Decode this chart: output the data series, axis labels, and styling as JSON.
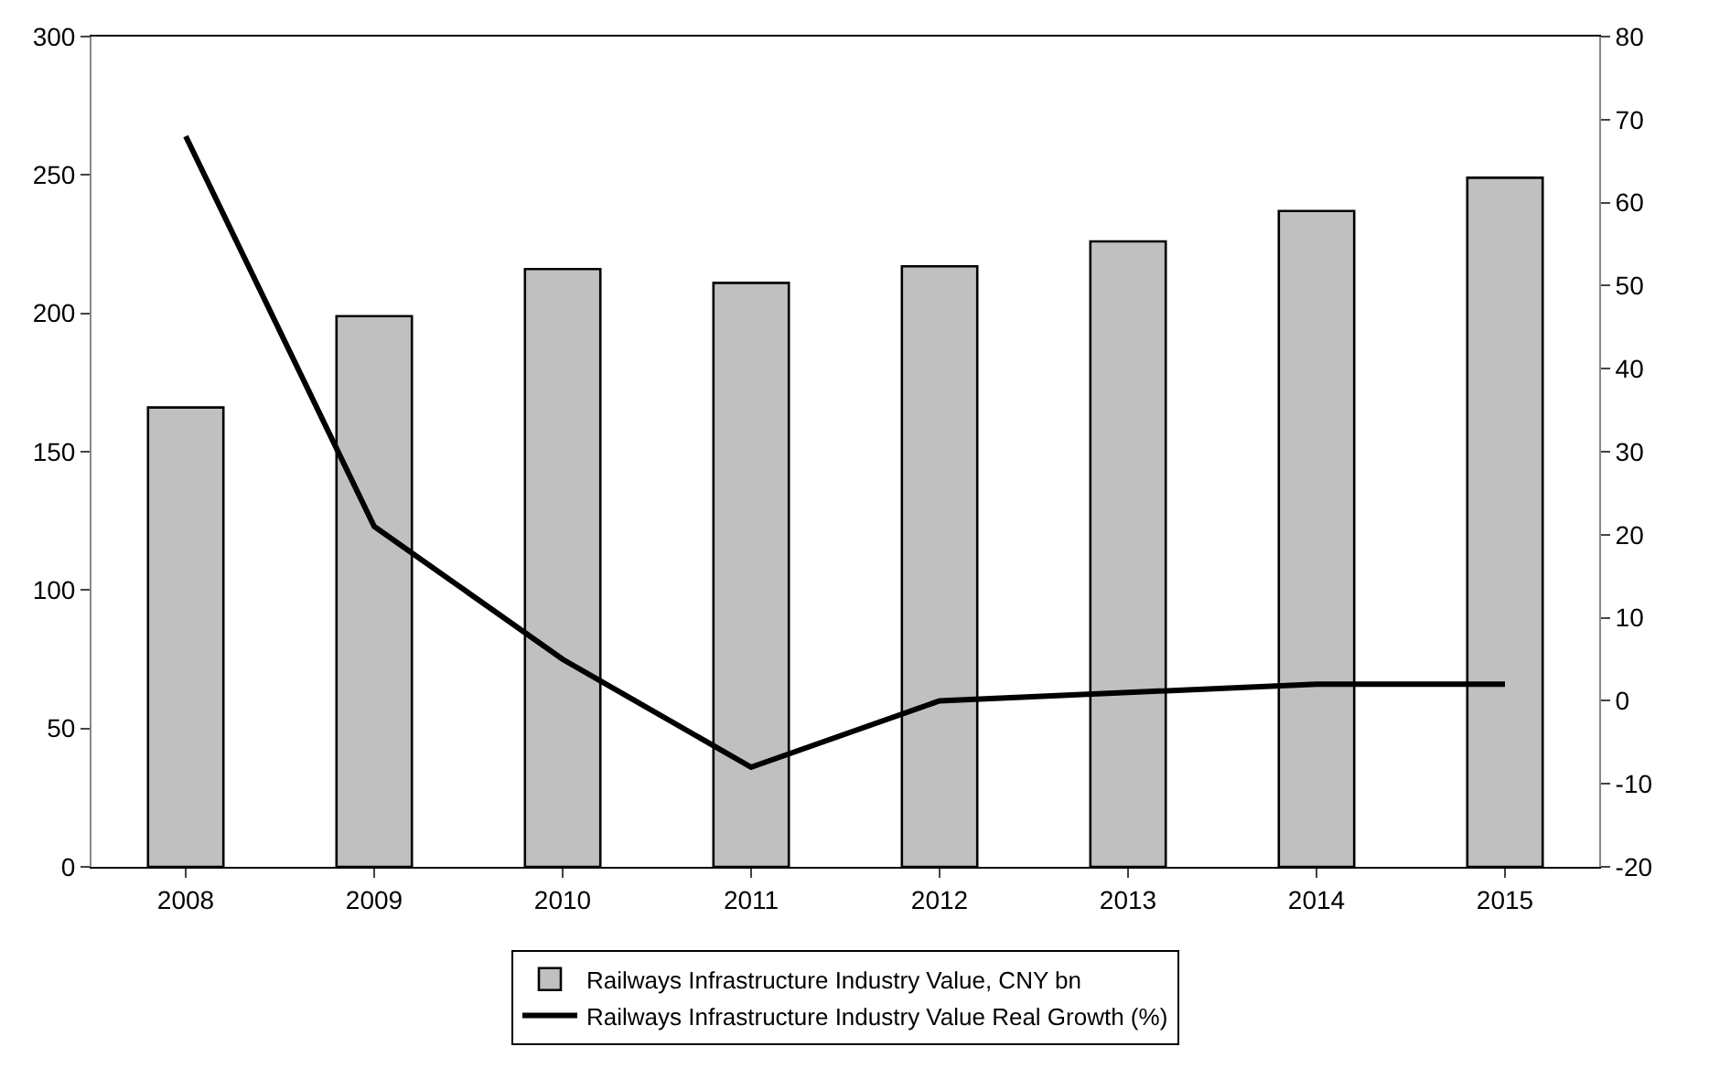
{
  "chart_data": {
    "type": "bar",
    "categories": [
      "2008",
      "2009",
      "2010",
      "2011",
      "2012",
      "2013",
      "2014",
      "2015"
    ],
    "series": [
      {
        "name": "Railways Infrastructure Industry Value, CNY bn",
        "color": "#c0c0c0",
        "values": [
          166,
          199,
          216,
          211,
          217,
          226,
          237,
          249
        ]
      },
      {
        "name": "Railways Infrastructure Industry Value Real Growth (%)",
        "type": "line",
        "axis": "y2",
        "color": "#000000",
        "values": [
          68,
          21,
          5,
          -8,
          0,
          1,
          2,
          2
        ]
      }
    ],
    "ylim": [
      0,
      300
    ],
    "yticks": [
      0,
      50,
      100,
      150,
      200,
      250,
      300
    ],
    "y2lim": [
      -20,
      80
    ],
    "y2ticks": [
      -20,
      -10,
      0,
      10,
      20,
      30,
      40,
      50,
      60,
      70,
      80
    ],
    "legend": "bottom",
    "marker": "none",
    "line_style": "solid"
  }
}
